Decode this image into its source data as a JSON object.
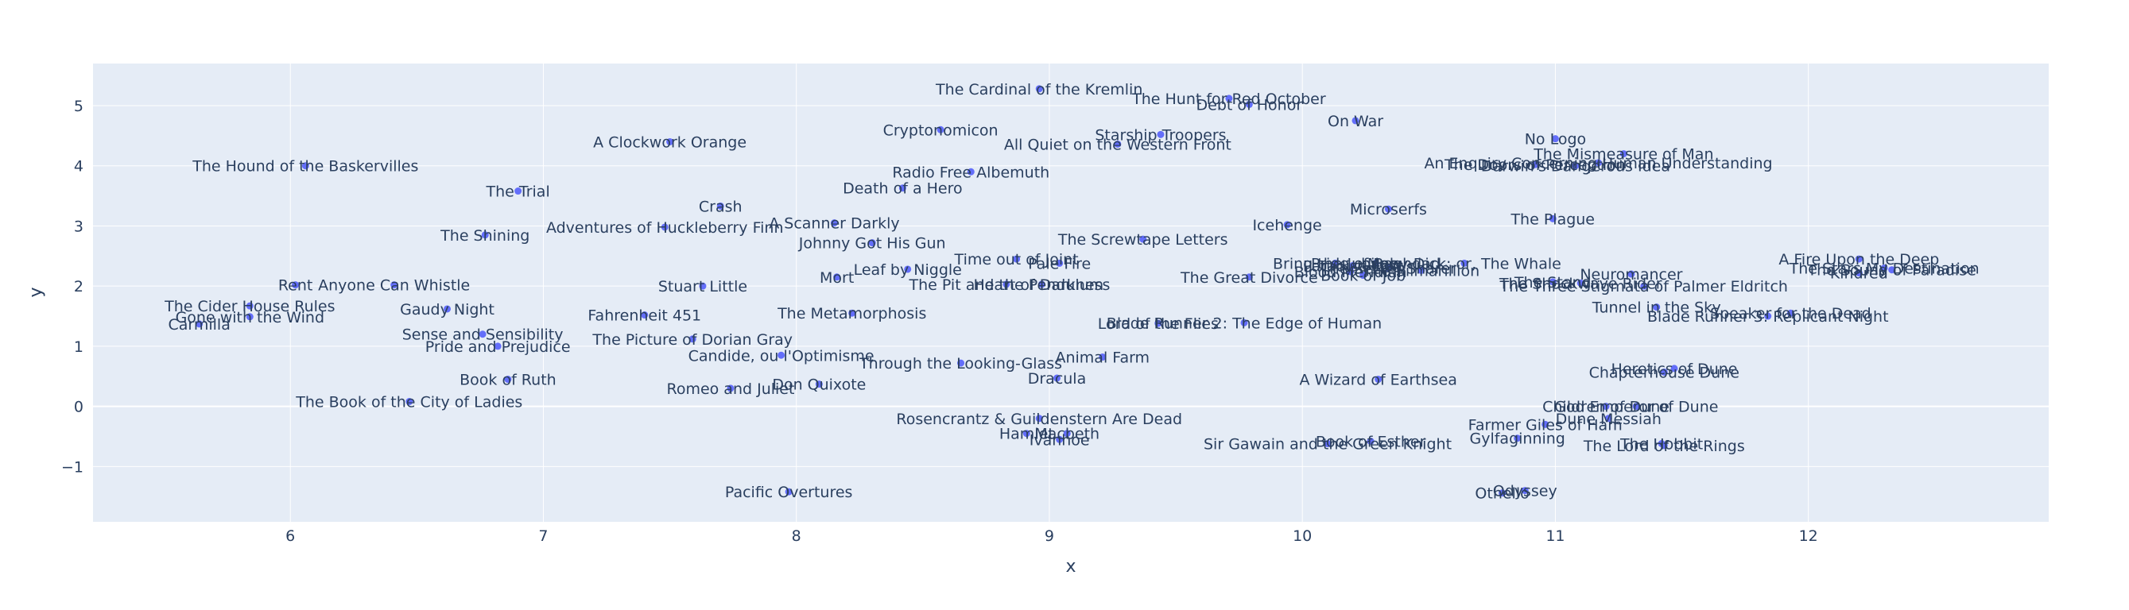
{
  "chart_data": {
    "type": "scatter",
    "title": "",
    "xlabel": "x",
    "ylabel": "y",
    "xlim": [
      5.22,
      12.95
    ],
    "ylim": [
      -1.92,
      5.7
    ],
    "x_ticks": [
      6,
      7,
      8,
      9,
      10,
      11,
      12
    ],
    "y_ticks": [
      -1,
      0,
      1,
      2,
      3,
      4,
      5
    ],
    "y_tick_labels": [
      "−1",
      "0",
      "1",
      "2",
      "3",
      "4",
      "5"
    ],
    "grid": true,
    "legend": "none",
    "colors": {
      "plot_bg": "#E5ECF6",
      "grid": "#FFFFFF",
      "marker": "#636EFA",
      "text": "#2A3F5F"
    },
    "points": [
      {
        "label": "The Cardinal of the Kremlin",
        "x": 8.96,
        "y": 5.28
      },
      {
        "label": "The Hunt for Red October",
        "x": 9.71,
        "y": 5.12
      },
      {
        "label": "Debt of Honor",
        "x": 9.79,
        "y": 5.02
      },
      {
        "label": "On War",
        "x": 10.21,
        "y": 4.75
      },
      {
        "label": "Cryptonomicon",
        "x": 8.57,
        "y": 4.6
      },
      {
        "label": "Starship Troopers",
        "x": 9.44,
        "y": 4.52
      },
      {
        "label": "No Logo",
        "x": 11.0,
        "y": 4.45
      },
      {
        "label": "A Clockwork Orange",
        "x": 7.5,
        "y": 4.4
      },
      {
        "label": "All Quiet on the Western Front",
        "x": 9.27,
        "y": 4.36
      },
      {
        "label": "The Mismeasure of Man",
        "x": 11.27,
        "y": 4.2
      },
      {
        "label": "An Enquiry Concerning Human Understanding",
        "x": 11.17,
        "y": 4.05
      },
      {
        "label": "The Doors of Perception",
        "x": 10.92,
        "y": 4.02
      },
      {
        "label": "Darwin's Dangerous Idea",
        "x": 11.08,
        "y": 4.0
      },
      {
        "label": "The Hound of the Baskervilles",
        "x": 6.06,
        "y": 4.0
      },
      {
        "label": "Radio Free Albemuth",
        "x": 8.69,
        "y": 3.9
      },
      {
        "label": "Death of a Hero",
        "x": 8.42,
        "y": 3.63
      },
      {
        "label": "The Trial",
        "x": 6.9,
        "y": 3.58
      },
      {
        "label": "Crash",
        "x": 7.7,
        "y": 3.33
      },
      {
        "label": "Microserfs",
        "x": 10.34,
        "y": 3.28
      },
      {
        "label": "The Plague",
        "x": 10.99,
        "y": 3.12
      },
      {
        "label": "A Scanner Darkly",
        "x": 8.15,
        "y": 3.05
      },
      {
        "label": "Icehenge",
        "x": 9.94,
        "y": 3.02
      },
      {
        "label": "Adventures of Huckleberry Finn",
        "x": 7.48,
        "y": 2.98
      },
      {
        "label": "The Shining",
        "x": 6.77,
        "y": 2.85
      },
      {
        "label": "The Screwtape Letters",
        "x": 9.37,
        "y": 2.78
      },
      {
        "label": "Johnny Got His Gun",
        "x": 8.3,
        "y": 2.72
      },
      {
        "label": "A Fire Upon the Deep",
        "x": 12.2,
        "y": 2.45
      },
      {
        "label": "Time out of Joint",
        "x": 8.87,
        "y": 2.45
      },
      {
        "label": "Pale Fire",
        "x": 9.04,
        "y": 2.38
      },
      {
        "label": "Moby-Dick; or, The Whale",
        "x": 10.64,
        "y": 2.38
      },
      {
        "label": "Bring the Jubilee",
        "x": 10.13,
        "y": 2.38
      },
      {
        "label": "Pride of Baghdad",
        "x": 10.29,
        "y": 2.38
      },
      {
        "label": "The Secret Sharer",
        "x": 10.34,
        "y": 2.3
      },
      {
        "label": "Paradise Lost",
        "x": 10.2,
        "y": 2.34
      },
      {
        "label": "The Silmarillion",
        "x": 10.47,
        "y": 2.26
      },
      {
        "label": "Blood Meridian",
        "x": 10.19,
        "y": 2.24
      },
      {
        "label": "Leaf by Niggle",
        "x": 8.44,
        "y": 2.28
      },
      {
        "label": "The Stars My Destination",
        "x": 12.3,
        "y": 2.3
      },
      {
        "label": "The Sound of Paradise",
        "x": 12.33,
        "y": 2.27
      },
      {
        "label": "Kindred",
        "x": 12.2,
        "y": 2.22
      },
      {
        "label": "Neuromancer",
        "x": 11.3,
        "y": 2.2
      },
      {
        "label": "Book of Job",
        "x": 10.24,
        "y": 2.18
      },
      {
        "label": "Mort",
        "x": 8.16,
        "y": 2.15
      },
      {
        "label": "The Great Divorce",
        "x": 9.79,
        "y": 2.15
      },
      {
        "label": "Heart of Darkness",
        "x": 8.97,
        "y": 2.03
      },
      {
        "label": "The Pit and the Pendulum",
        "x": 8.83,
        "y": 2.03
      },
      {
        "label": "The Shockwave Rider",
        "x": 11.1,
        "y": 2.05
      },
      {
        "label": "The Stand",
        "x": 10.99,
        "y": 2.07
      },
      {
        "label": "The Three Stigmata of Palmer Eldritch",
        "x": 11.35,
        "y": 2.0
      },
      {
        "label": "Rent",
        "x": 6.02,
        "y": 2.02
      },
      {
        "label": "Anyone Can Whistle",
        "x": 6.41,
        "y": 2.02
      },
      {
        "label": "Stuart Little",
        "x": 7.63,
        "y": 2.0
      },
      {
        "label": "Tunnel in the Sky",
        "x": 11.4,
        "y": 1.65
      },
      {
        "label": "The Cider House Rules",
        "x": 5.84,
        "y": 1.67
      },
      {
        "label": "Gaudy Night",
        "x": 6.62,
        "y": 1.62
      },
      {
        "label": "Speaker for the Dead",
        "x": 11.93,
        "y": 1.55
      },
      {
        "label": "The Metamorphosis",
        "x": 8.22,
        "y": 1.55
      },
      {
        "label": "Blade Runner 3: Replicant Night",
        "x": 11.84,
        "y": 1.5
      },
      {
        "label": "Fahrenheit 451",
        "x": 7.4,
        "y": 1.52
      },
      {
        "label": "Gone with the Wind",
        "x": 5.84,
        "y": 1.49
      },
      {
        "label": "Blade Runner 2: The Edge of Human",
        "x": 9.77,
        "y": 1.39
      },
      {
        "label": "Lord of the Flies",
        "x": 9.43,
        "y": 1.38
      },
      {
        "label": "Carmilla",
        "x": 5.64,
        "y": 1.37
      },
      {
        "label": "Sense and Sensibility",
        "x": 6.76,
        "y": 1.2
      },
      {
        "label": "The Picture of Dorian Gray",
        "x": 7.59,
        "y": 1.12
      },
      {
        "label": "Pride and Prejudice",
        "x": 6.82,
        "y": 1.0
      },
      {
        "label": "Candide, ou l'Optimisme",
        "x": 7.94,
        "y": 0.85
      },
      {
        "label": "Animal Farm",
        "x": 9.21,
        "y": 0.82
      },
      {
        "label": "Through the Looking-Glass",
        "x": 8.65,
        "y": 0.72
      },
      {
        "label": "Heretics of Dune",
        "x": 11.47,
        "y": 0.63
      },
      {
        "label": "Chapterhouse Dune",
        "x": 11.43,
        "y": 0.57
      },
      {
        "label": "Book of Ruth",
        "x": 6.86,
        "y": 0.45
      },
      {
        "label": "A Wizard of Earthsea",
        "x": 10.3,
        "y": 0.45
      },
      {
        "label": "Dracula",
        "x": 9.03,
        "y": 0.47
      },
      {
        "label": "Don Quixote",
        "x": 8.09,
        "y": 0.37
      },
      {
        "label": "Romeo and Juliet",
        "x": 7.74,
        "y": 0.3
      },
      {
        "label": "The Book of the City of Ladies",
        "x": 6.47,
        "y": 0.08
      },
      {
        "label": "Children of Dune",
        "x": 11.2,
        "y": 0.0
      },
      {
        "label": "God Emperor of Dune",
        "x": 11.32,
        "y": 0.0
      },
      {
        "label": "Dune Messiah",
        "x": 11.21,
        "y": -0.2
      },
      {
        "label": "Rosencrantz & Guildenstern Are Dead",
        "x": 8.96,
        "y": -0.2
      },
      {
        "label": "Farmer Giles of Ham",
        "x": 10.96,
        "y": -0.3
      },
      {
        "label": "Hamlet",
        "x": 8.91,
        "y": -0.45
      },
      {
        "label": "Macbeth",
        "x": 9.07,
        "y": -0.45
      },
      {
        "label": "Ivanhoe",
        "x": 9.04,
        "y": -0.55
      },
      {
        "label": "Gylfaginning",
        "x": 10.85,
        "y": -0.53
      },
      {
        "label": "Book of Esther",
        "x": 10.27,
        "y": -0.58
      },
      {
        "label": "Sir Gawain and the Green Knight",
        "x": 10.1,
        "y": -0.62
      },
      {
        "label": "The Hobbit",
        "x": 11.42,
        "y": -0.62
      },
      {
        "label": "The Lord of the Rings",
        "x": 11.43,
        "y": -0.65
      },
      {
        "label": "Pacific Overtures",
        "x": 7.97,
        "y": -1.42
      },
      {
        "label": "Odyssey",
        "x": 10.88,
        "y": -1.4
      },
      {
        "label": "Othello",
        "x": 10.79,
        "y": -1.44
      }
    ]
  }
}
